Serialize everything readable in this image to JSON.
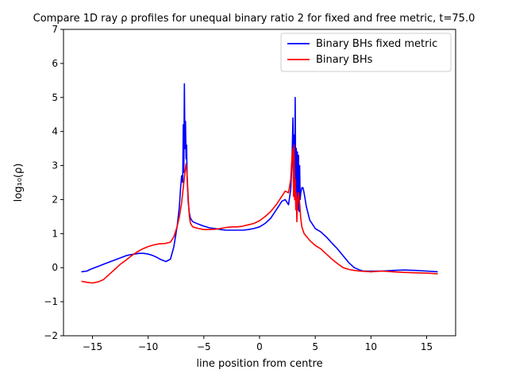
{
  "chart_data": {
    "type": "line",
    "title": "Compare 1D ray ρ profiles for unequal binary ratio 2 for fixed and free metric, t=75.0",
    "xlabel": "line position from centre",
    "ylabel": "log₁₀(ρ)",
    "xlim": [
      -17.6,
      17.6
    ],
    "ylim": [
      -2,
      7
    ],
    "xticks": [
      -15,
      -10,
      -5,
      0,
      5,
      10,
      15
    ],
    "xtick_labels": [
      "−15",
      "−10",
      "−5",
      "0",
      "5",
      "10",
      "15"
    ],
    "yticks": [
      -2,
      -1,
      0,
      1,
      2,
      3,
      4,
      5,
      6,
      7
    ],
    "ytick_labels": [
      "−2",
      "−1",
      "0",
      "1",
      "2",
      "3",
      "4",
      "5",
      "6",
      "7"
    ],
    "grid": false,
    "legend_position": "upper right",
    "series": [
      {
        "name": "Binary BHs fixed metric",
        "color": "#0000ff",
        "x": [
          -16,
          -15.5,
          -15.2,
          -14.8,
          -14.4,
          -14,
          -13.6,
          -13.2,
          -12.8,
          -12.4,
          -12,
          -11.6,
          -11.2,
          -10.8,
          -10.4,
          -10,
          -9.6,
          -9.2,
          -8.8,
          -8.4,
          -8,
          -7.7,
          -7.4,
          -7.2,
          -7.1,
          -7.0,
          -6.9,
          -6.85,
          -6.8,
          -6.75,
          -6.7,
          -6.65,
          -6.6,
          -6.55,
          -6.5,
          -6.4,
          -6.3,
          -6.2,
          -6.0,
          -5.5,
          -5,
          -4.5,
          -4,
          -3.5,
          -3,
          -2.5,
          -2,
          -1.5,
          -1,
          -0.5,
          0,
          0.5,
          1,
          1.5,
          2,
          2.3,
          2.6,
          2.8,
          2.9,
          3.0,
          3.05,
          3.1,
          3.15,
          3.2,
          3.25,
          3.3,
          3.35,
          3.4,
          3.45,
          3.5,
          3.55,
          3.6,
          3.65,
          3.7,
          3.8,
          3.9,
          4.0,
          4.2,
          4.5,
          5,
          5.5,
          6,
          6.5,
          7,
          7.5,
          8,
          8.5,
          9,
          9.3,
          9.6,
          10,
          11,
          12,
          13,
          14,
          15,
          16
        ],
        "y": [
          -0.12,
          -0.1,
          -0.05,
          0.0,
          0.05,
          0.1,
          0.15,
          0.2,
          0.25,
          0.3,
          0.35,
          0.38,
          0.4,
          0.42,
          0.42,
          0.4,
          0.36,
          0.3,
          0.23,
          0.18,
          0.25,
          0.6,
          1.2,
          1.8,
          2.3,
          2.7,
          2.5,
          4.2,
          2.8,
          5.4,
          3.5,
          4.3,
          3.2,
          3.6,
          2.6,
          1.9,
          1.6,
          1.45,
          1.35,
          1.28,
          1.22,
          1.17,
          1.15,
          1.12,
          1.1,
          1.1,
          1.1,
          1.1,
          1.12,
          1.15,
          1.2,
          1.3,
          1.45,
          1.7,
          1.95,
          2.0,
          1.85,
          2.3,
          3.0,
          4.4,
          2.6,
          3.9,
          2.5,
          5.0,
          2.2,
          3.5,
          1.8,
          3.4,
          1.7,
          3.3,
          1.65,
          3.0,
          2.0,
          2.2,
          2.35,
          2.35,
          2.2,
          1.8,
          1.4,
          1.15,
          1.05,
          0.9,
          0.72,
          0.55,
          0.35,
          0.15,
          0.0,
          -0.07,
          -0.1,
          -0.1,
          -0.1,
          -0.1,
          -0.08,
          -0.07,
          -0.08,
          -0.1,
          -0.12
        ]
      },
      {
        "name": "Binary BHs",
        "color": "#ff0000",
        "x": [
          -16,
          -15.5,
          -15,
          -14.5,
          -14,
          -13.5,
          -13,
          -12.5,
          -12,
          -11.5,
          -11,
          -10.5,
          -10,
          -9.5,
          -9,
          -8.5,
          -8,
          -7.7,
          -7.4,
          -7.2,
          -7.0,
          -6.9,
          -6.8,
          -6.7,
          -6.6,
          -6.5,
          -6.4,
          -6.3,
          -6.2,
          -6.0,
          -5.5,
          -5,
          -4.5,
          -4,
          -3.5,
          -3,
          -2.5,
          -2,
          -1.5,
          -1,
          -0.5,
          0,
          0.5,
          1,
          1.5,
          2,
          2.3,
          2.6,
          2.8,
          2.9,
          3.0,
          3.05,
          3.1,
          3.15,
          3.2,
          3.25,
          3.3,
          3.35,
          3.4,
          3.5,
          3.6,
          3.7,
          3.8,
          4.0,
          4.5,
          5,
          5.5,
          6,
          6.5,
          7,
          7.5,
          8,
          8.5,
          9,
          10,
          11,
          12,
          13,
          14,
          15,
          16
        ],
        "y": [
          -0.4,
          -0.43,
          -0.45,
          -0.42,
          -0.35,
          -0.2,
          -0.05,
          0.1,
          0.22,
          0.35,
          0.46,
          0.55,
          0.62,
          0.67,
          0.7,
          0.71,
          0.75,
          0.9,
          1.2,
          1.5,
          1.9,
          2.2,
          2.5,
          2.8,
          3.05,
          2.7,
          2.0,
          1.5,
          1.3,
          1.2,
          1.15,
          1.12,
          1.12,
          1.13,
          1.15,
          1.18,
          1.2,
          1.2,
          1.22,
          1.26,
          1.3,
          1.38,
          1.5,
          1.65,
          1.85,
          2.1,
          2.25,
          2.2,
          2.6,
          3.2,
          3.5,
          2.1,
          3.6,
          2.0,
          2.6,
          1.7,
          2.2,
          1.35,
          1.9,
          2.2,
          1.9,
          1.45,
          1.2,
          1.0,
          0.8,
          0.65,
          0.55,
          0.4,
          0.25,
          0.12,
          0.0,
          -0.05,
          -0.08,
          -0.1,
          -0.12,
          -0.1,
          -0.12,
          -0.14,
          -0.15,
          -0.16,
          -0.18
        ]
      }
    ]
  }
}
